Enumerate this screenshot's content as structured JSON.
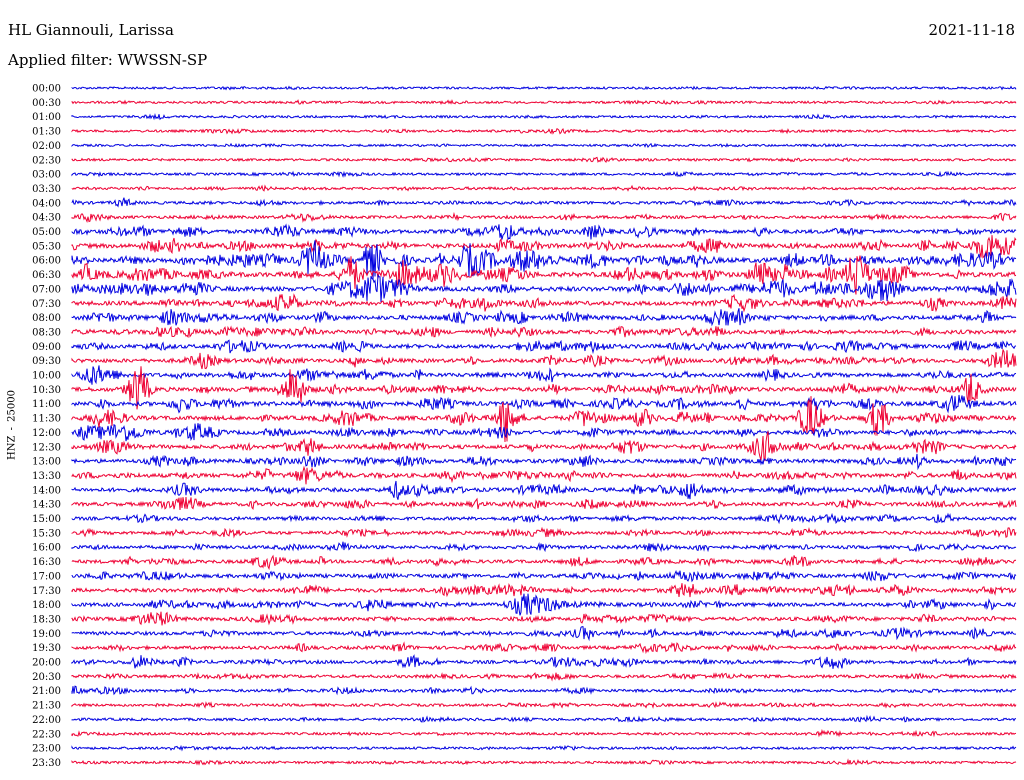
{
  "header": {
    "station": "HL Giannouli, Larissa",
    "date": "2021-11-18",
    "filter_label": "Applied filter:",
    "filter_value": "WWSSN-SP"
  },
  "y_axis": {
    "channel": "HNZ",
    "separator": "-",
    "scale": "25000"
  },
  "chart_data": {
    "type": "line",
    "title": "HL Giannouli, Larissa",
    "subtitle": "Applied filter: WWSSN-SP",
    "date": "2021-11-18",
    "ylabel": "HNZ - 25000",
    "xlabel": "",
    "grid": false,
    "legend": "none",
    "colors": {
      "even_row": "#0000e0",
      "odd_row": "#ee0033"
    },
    "row_labels": [
      "00:00",
      "00:30",
      "01:00",
      "01:30",
      "02:00",
      "02:30",
      "03:00",
      "03:30",
      "04:00",
      "04:30",
      "05:00",
      "05:30",
      "06:00",
      "06:30",
      "07:00",
      "07:30",
      "08:00",
      "08:30",
      "09:00",
      "09:30",
      "10:00",
      "10:30",
      "11:00",
      "11:30",
      "12:00",
      "12:30",
      "13:00",
      "13:30",
      "14:00",
      "14:30",
      "15:00",
      "15:30",
      "16:00",
      "16:30",
      "17:00",
      "17:30",
      "18:00",
      "18:30",
      "19:00",
      "19:30",
      "20:00",
      "20:30",
      "21:00",
      "21:30",
      "22:00",
      "22:30",
      "23:00",
      "23:30"
    ],
    "activity_level": [
      0.1,
      0.14,
      0.12,
      0.16,
      0.1,
      0.14,
      0.16,
      0.2,
      0.28,
      0.32,
      0.55,
      0.72,
      0.88,
      0.85,
      0.82,
      0.68,
      0.65,
      0.62,
      0.6,
      0.58,
      0.62,
      0.66,
      0.7,
      0.68,
      0.62,
      0.64,
      0.6,
      0.62,
      0.62,
      0.5,
      0.42,
      0.42,
      0.42,
      0.46,
      0.52,
      0.58,
      0.58,
      0.5,
      0.46,
      0.44,
      0.46,
      0.34,
      0.3,
      0.24,
      0.22,
      0.2,
      0.18,
      0.18
    ],
    "major_events": [
      {
        "row": "06:00",
        "note": "strong burst"
      },
      {
        "row": "06:30",
        "note": "strong burst"
      },
      {
        "row": "10:30",
        "note": "strong burst"
      },
      {
        "row": "11:30",
        "note": "strong burst"
      }
    ]
  }
}
